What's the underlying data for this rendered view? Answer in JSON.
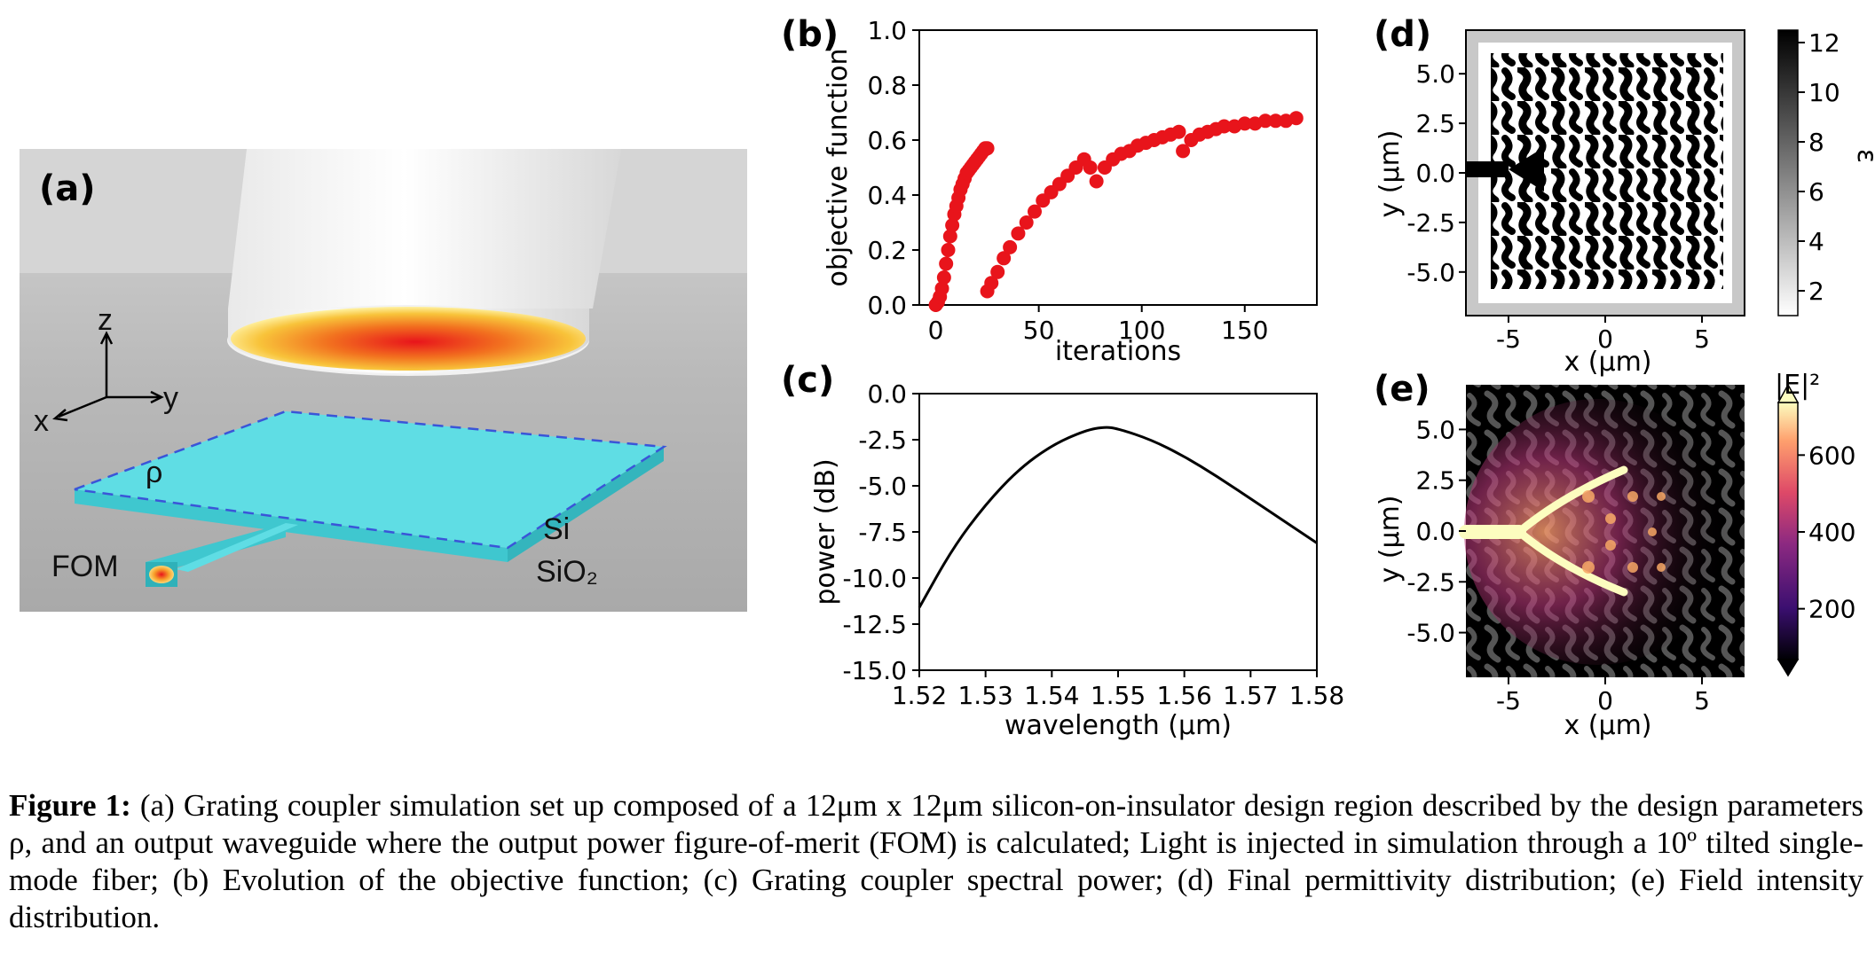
{
  "panel_a": {
    "label": "(a)",
    "axes": {
      "z": "z",
      "y": "y",
      "x": "x"
    },
    "rho": "ρ",
    "fom": "FOM",
    "si": "Si",
    "sio2": "SiO₂"
  },
  "panel_labels": {
    "b": "(b)",
    "c": "(c)",
    "d": "(d)",
    "e": "(e)"
  },
  "colors": {
    "points": "#e8141b",
    "line": "#000000",
    "slab": "#55d9e0",
    "dash": "#3a55d8"
  },
  "chart_data": [
    {
      "panel": "(b)",
      "type": "scatter",
      "xlabel": "iterations",
      "ylabel": "objective function",
      "xlim": [
        -8,
        185
      ],
      "ylim": [
        0,
        1.0
      ],
      "xticks": [
        "0",
        "50",
        "100",
        "150"
      ],
      "yticks": [
        "0.0",
        "0.2",
        "0.4",
        "0.6",
        "0.8",
        "1.0"
      ],
      "series": [
        {
          "x": [
            0,
            1,
            2,
            3,
            4,
            5,
            6,
            7,
            8,
            9,
            10,
            11,
            12,
            13,
            14,
            15,
            16,
            17,
            18,
            19,
            20,
            21,
            22,
            23,
            24,
            25
          ],
          "y": [
            0.0,
            0.01,
            0.03,
            0.06,
            0.1,
            0.15,
            0.2,
            0.25,
            0.29,
            0.33,
            0.36,
            0.39,
            0.42,
            0.44,
            0.46,
            0.48,
            0.49,
            0.5,
            0.51,
            0.52,
            0.53,
            0.54,
            0.55,
            0.56,
            0.57,
            0.57
          ]
        },
        {
          "x": [
            25,
            27,
            30,
            33,
            36,
            40,
            44,
            48,
            52,
            56,
            60,
            64,
            68,
            72,
            75,
            78,
            82,
            86,
            90,
            94,
            98,
            102,
            106,
            110,
            114,
            118,
            120,
            124,
            128,
            132,
            136,
            140,
            145,
            150,
            155,
            160,
            165,
            170,
            175
          ],
          "y": [
            0.05,
            0.08,
            0.12,
            0.17,
            0.21,
            0.26,
            0.3,
            0.34,
            0.38,
            0.41,
            0.44,
            0.47,
            0.5,
            0.53,
            0.5,
            0.45,
            0.5,
            0.53,
            0.55,
            0.56,
            0.58,
            0.59,
            0.6,
            0.61,
            0.62,
            0.63,
            0.56,
            0.6,
            0.62,
            0.63,
            0.64,
            0.65,
            0.65,
            0.66,
            0.66,
            0.67,
            0.67,
            0.67,
            0.68
          ]
        }
      ]
    },
    {
      "panel": "(c)",
      "type": "line",
      "xlabel": "wavelength (μm)",
      "ylabel": "power (dB)",
      "xlim": [
        1.52,
        1.58
      ],
      "ylim": [
        -15.0,
        0.0
      ],
      "xticks": [
        "1.52",
        "1.53",
        "1.54",
        "1.55",
        "1.56",
        "1.57",
        "1.58"
      ],
      "yticks": [
        "0.0",
        "-2.5",
        "-5.0",
        "-7.5",
        "-10.0",
        "-12.5",
        "-15.0"
      ],
      "series": [
        {
          "x": [
            1.52,
            1.525,
            1.53,
            1.535,
            1.54,
            1.545,
            1.548,
            1.55,
            1.555,
            1.56,
            1.565,
            1.57,
            1.575,
            1.58
          ],
          "y": [
            -11.6,
            -8.4,
            -6.0,
            -4.1,
            -2.8,
            -2.0,
            -1.8,
            -1.9,
            -2.5,
            -3.4,
            -4.5,
            -5.7,
            -6.9,
            -8.1
          ]
        }
      ]
    },
    {
      "panel": "(d)",
      "type": "heatmap",
      "xlabel": "x (μm)",
      "ylabel": "y (μm)",
      "colorbar_label": "ε",
      "xticks": [
        "-5",
        "0",
        "5"
      ],
      "yticks": [
        "5.0",
        "2.5",
        "0.0",
        "-2.5",
        "-5.0"
      ],
      "colorbar_ticks": [
        "12",
        "10",
        "8",
        "6",
        "4",
        "2"
      ]
    },
    {
      "panel": "(e)",
      "type": "heatmap",
      "xlabel": "x (μm)",
      "ylabel": "y (μm)",
      "colorbar_label": "|E|²",
      "xticks": [
        "-5",
        "0",
        "5"
      ],
      "yticks": [
        "5.0",
        "2.5",
        "0.0",
        "-2.5",
        "-5.0"
      ],
      "colorbar_ticks": [
        "600",
        "400",
        "200"
      ]
    }
  ],
  "caption": {
    "bold": "Figure 1:",
    "text": " (a) Grating coupler simulation set up composed of a 12μm x 12μm silicon-on-insulator design region described by the design parameters ρ, and an output waveguide where the output power figure-of-merit (FOM) is calculated; Light is injected in simulation through a 10º tilted single-mode fiber; (b) Evolution of the objective function; (c)  Grating coupler spectral power; (d) Final permittivity distribution; (e) Field intensity distribution."
  }
}
